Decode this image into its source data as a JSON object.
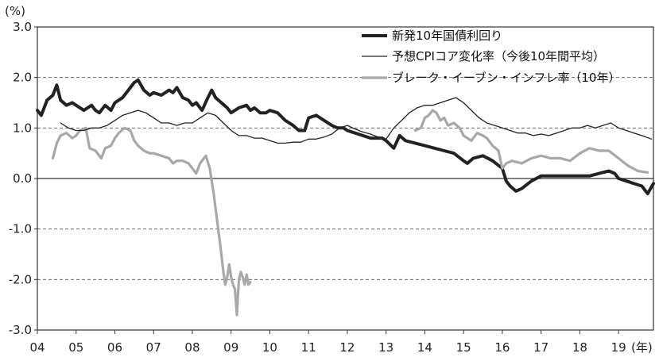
{
  "chart_data": {
    "type": "line",
    "y_unit_label": "(%)",
    "x_unit_label": "(年)",
    "ylim": [
      -3.0,
      3.0
    ],
    "xlim": [
      2004,
      2019.9
    ],
    "y_ticks": [
      "3.0",
      "2.0",
      "1.0",
      "0.0",
      "-1.0",
      "-2.0",
      "-3.0"
    ],
    "y_tick_values": [
      3,
      2,
      1,
      0,
      -1,
      -2,
      -3
    ],
    "x_ticks": [
      "04",
      "05",
      "06",
      "07",
      "08",
      "09",
      "10",
      "11",
      "12",
      "13",
      "14",
      "15",
      "16",
      "17",
      "18",
      "19"
    ],
    "x_tick_values": [
      2004,
      2005,
      2006,
      2007,
      2008,
      2009,
      2010,
      2011,
      2012,
      2013,
      2014,
      2015,
      2016,
      2017,
      2018,
      2019
    ],
    "gridlines": "dashed, at 1.0 intervals; solid zero line",
    "legend_position": "top-right",
    "series": [
      {
        "name": "新発10年国債利回り",
        "color": "#222222",
        "style": "thick",
        "x": [
          2004.0,
          2004.1,
          2004.25,
          2004.4,
          2004.5,
          2004.6,
          2004.75,
          2004.9,
          2005.0,
          2005.2,
          2005.4,
          2005.5,
          2005.6,
          2005.75,
          2005.9,
          2006.0,
          2006.2,
          2006.35,
          2006.5,
          2006.6,
          2006.75,
          2006.9,
          2007.0,
          2007.2,
          2007.4,
          2007.5,
          2007.6,
          2007.75,
          2007.9,
          2008.0,
          2008.1,
          2008.25,
          2008.4,
          2008.5,
          2008.6,
          2008.75,
          2008.9,
          2009.0,
          2009.2,
          2009.4,
          2009.5,
          2009.6,
          2009.75,
          2009.9,
          2010.0,
          2010.2,
          2010.4,
          2010.6,
          2010.75,
          2010.9,
          2011.0,
          2011.2,
          2011.4,
          2011.6,
          2011.75,
          2011.9,
          2012.0,
          2012.2,
          2012.4,
          2012.6,
          2012.75,
          2012.9,
          2013.0,
          2013.2,
          2013.35,
          2013.5,
          2013.75,
          2014.0,
          2014.25,
          2014.5,
          2014.75,
          2015.0,
          2015.1,
          2015.25,
          2015.5,
          2015.75,
          2016.0,
          2016.1,
          2016.2,
          2016.35,
          2016.5,
          2016.75,
          2017.0,
          2017.25,
          2017.5,
          2017.75,
          2018.0,
          2018.25,
          2018.5,
          2018.75,
          2018.9,
          2019.0,
          2019.2,
          2019.4,
          2019.6,
          2019.75,
          2019.9
        ],
        "y": [
          1.35,
          1.25,
          1.55,
          1.65,
          1.85,
          1.55,
          1.45,
          1.5,
          1.45,
          1.35,
          1.45,
          1.35,
          1.3,
          1.45,
          1.35,
          1.5,
          1.6,
          1.75,
          1.9,
          1.95,
          1.75,
          1.65,
          1.7,
          1.65,
          1.75,
          1.7,
          1.8,
          1.6,
          1.55,
          1.45,
          1.5,
          1.35,
          1.6,
          1.75,
          1.6,
          1.5,
          1.4,
          1.3,
          1.4,
          1.45,
          1.35,
          1.4,
          1.3,
          1.3,
          1.35,
          1.3,
          1.15,
          1.05,
          0.95,
          0.95,
          1.2,
          1.25,
          1.15,
          1.05,
          1.0,
          1.0,
          0.95,
          0.9,
          0.85,
          0.8,
          0.8,
          0.8,
          0.75,
          0.6,
          0.85,
          0.75,
          0.7,
          0.65,
          0.6,
          0.55,
          0.5,
          0.35,
          0.3,
          0.4,
          0.45,
          0.35,
          0.2,
          -0.05,
          -0.15,
          -0.25,
          -0.2,
          -0.05,
          0.05,
          0.05,
          0.05,
          0.05,
          0.05,
          0.05,
          0.1,
          0.15,
          0.1,
          0.0,
          -0.05,
          -0.1,
          -0.15,
          -0.3,
          -0.1
        ]
      },
      {
        "name": "予想CPIコア変化率（今後10年間平均）",
        "color": "#222222",
        "style": "thin",
        "x": [
          2004.6,
          2004.8,
          2005.0,
          2005.2,
          2005.4,
          2005.6,
          2005.8,
          2006.0,
          2006.2,
          2006.4,
          2006.6,
          2006.8,
          2007.0,
          2007.2,
          2007.4,
          2007.6,
          2007.8,
          2008.0,
          2008.2,
          2008.4,
          2008.6,
          2008.8,
          2009.0,
          2009.2,
          2009.4,
          2009.6,
          2009.8,
          2010.0,
          2010.2,
          2010.4,
          2010.6,
          2010.8,
          2011.0,
          2011.2,
          2011.4,
          2011.6,
          2011.8,
          2012.0,
          2012.2,
          2012.4,
          2012.6,
          2012.8,
          2013.0,
          2013.2,
          2013.4,
          2013.6,
          2013.8,
          2014.0,
          2014.2,
          2014.4,
          2014.6,
          2014.8,
          2015.0,
          2015.2,
          2015.4,
          2015.6,
          2015.8,
          2016.0,
          2016.2,
          2016.4,
          2016.6,
          2016.8,
          2017.0,
          2017.2,
          2017.4,
          2017.6,
          2017.8,
          2018.0,
          2018.2,
          2018.4,
          2018.6,
          2018.8,
          2019.0,
          2019.2,
          2019.4,
          2019.6,
          2019.85
        ],
        "y": [
          1.1,
          1.0,
          0.95,
          0.95,
          1.0,
          1.0,
          1.05,
          1.15,
          1.25,
          1.3,
          1.35,
          1.3,
          1.2,
          1.1,
          1.1,
          1.05,
          1.1,
          1.1,
          1.2,
          1.3,
          1.25,
          1.1,
          0.95,
          0.85,
          0.85,
          0.8,
          0.8,
          0.75,
          0.7,
          0.7,
          0.72,
          0.72,
          0.78,
          0.78,
          0.82,
          0.88,
          1.0,
          1.05,
          0.98,
          0.92,
          0.88,
          0.82,
          0.78,
          1.0,
          1.15,
          1.3,
          1.4,
          1.45,
          1.45,
          1.5,
          1.55,
          1.6,
          1.5,
          1.35,
          1.2,
          1.1,
          1.05,
          1.0,
          0.95,
          0.9,
          0.9,
          0.85,
          0.88,
          0.85,
          0.9,
          0.95,
          1.0,
          1.0,
          1.05,
          1.0,
          1.05,
          1.1,
          1.0,
          0.95,
          0.9,
          0.85,
          0.78
        ]
      },
      {
        "name": "ブレーク・イーブン・インフレ率（10年）",
        "color": "#a8a8a8",
        "style": "medium",
        "x": [
          2004.4,
          2004.5,
          2004.6,
          2004.75,
          2004.9,
          2005.0,
          2005.1,
          2005.25,
          2005.35,
          2005.5,
          2005.65,
          2005.75,
          2005.9,
          2006.0,
          2006.1,
          2006.25,
          2006.4,
          2006.5,
          2006.6,
          2006.75,
          2006.9,
          2007.0,
          2007.2,
          2007.4,
          2007.5,
          2007.6,
          2007.75,
          2007.9,
          2008.0,
          2008.1,
          2008.2,
          2008.35,
          2008.45,
          2008.55,
          2008.65,
          2008.75,
          2008.8,
          2008.85,
          2008.9,
          2008.95,
          2009.0,
          2009.05,
          2009.1,
          2009.15,
          2009.2,
          2009.25,
          2009.3,
          2009.35,
          2009.4,
          2009.45,
          2009.5,
          2013.75,
          2013.9,
          2014.0,
          2014.1,
          2014.2,
          2014.3,
          2014.4,
          2014.5,
          2014.6,
          2014.75,
          2014.9,
          2015.0,
          2015.2,
          2015.35,
          2015.5,
          2015.6,
          2015.75,
          2015.9,
          2016.0,
          2016.1,
          2016.25,
          2016.5,
          2016.75,
          2017.0,
          2017.25,
          2017.5,
          2017.75,
          2018.0,
          2018.25,
          2018.5,
          2018.75,
          2019.0,
          2019.25,
          2019.5,
          2019.75
        ],
        "y": [
          0.4,
          0.7,
          0.85,
          0.9,
          0.8,
          0.85,
          0.95,
          1.0,
          0.6,
          0.55,
          0.4,
          0.6,
          0.65,
          0.8,
          0.9,
          1.0,
          0.95,
          0.75,
          0.65,
          0.55,
          0.5,
          0.5,
          0.45,
          0.4,
          0.3,
          0.35,
          0.35,
          0.3,
          0.2,
          0.1,
          0.3,
          0.45,
          0.2,
          -0.3,
          -0.9,
          -1.5,
          -1.85,
          -2.1,
          -1.95,
          -1.7,
          -1.95,
          -2.1,
          -2.2,
          -2.7,
          -2.0,
          -1.85,
          -1.95,
          -2.1,
          -1.9,
          -2.1,
          -2.05,
          0.95,
          1.0,
          1.2,
          1.25,
          1.35,
          1.3,
          1.15,
          1.2,
          1.05,
          1.1,
          1.0,
          0.85,
          0.75,
          0.9,
          0.85,
          0.8,
          0.65,
          0.55,
          0.2,
          0.3,
          0.35,
          0.3,
          0.4,
          0.45,
          0.4,
          0.4,
          0.35,
          0.5,
          0.6,
          0.55,
          0.55,
          0.4,
          0.25,
          0.15,
          0.12
        ]
      }
    ]
  }
}
